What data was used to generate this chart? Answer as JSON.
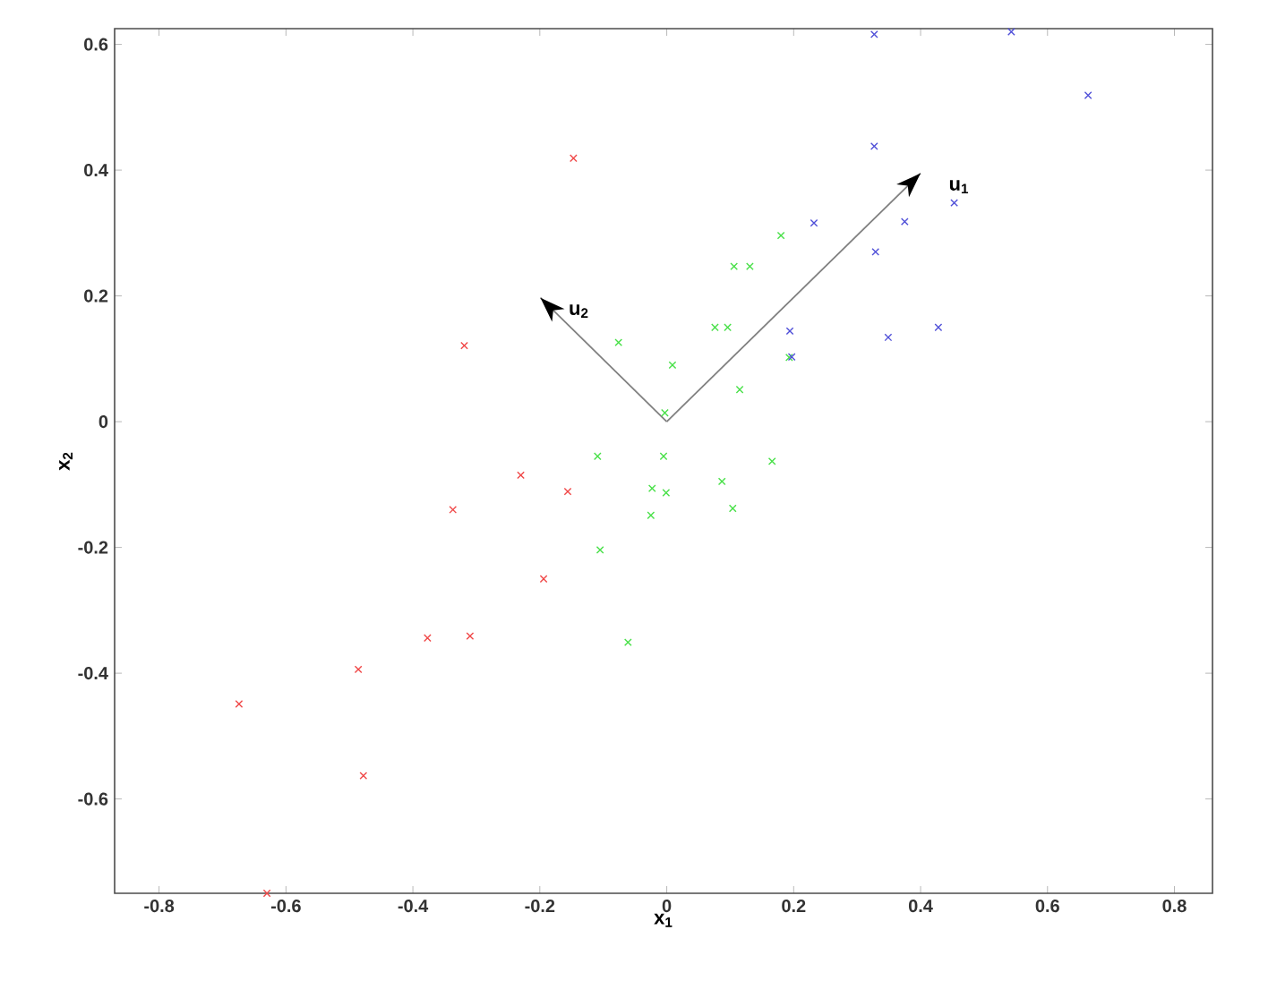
{
  "chart_data": {
    "type": "scatter",
    "xlabel": "x$_{1}$",
    "ylabel": "x$_{2}$",
    "xlim": [
      -0.87,
      0.86
    ],
    "ylim": [
      -0.75,
      0.625
    ],
    "xticks": [
      -0.8,
      -0.6,
      -0.4,
      -0.2,
      0,
      0.2,
      0.4,
      0.6,
      0.8
    ],
    "yticks": [
      -0.6,
      -0.4,
      -0.2,
      0,
      0.2,
      0.4,
      0.6
    ],
    "marker": "cross",
    "series": [
      {
        "color": "#f04848",
        "x": [
          -0.147,
          -0.319,
          -0.23,
          -0.156,
          -0.337,
          -0.194,
          -0.377,
          -0.31,
          -0.486,
          -0.674,
          -0.478,
          -0.63
        ],
        "values": [
          0.419,
          0.121,
          -0.085,
          -0.111,
          -0.14,
          -0.25,
          -0.344,
          -0.341,
          -0.394,
          -0.449,
          -0.563,
          -0.75
        ]
      },
      {
        "color": "#48e048",
        "x": [
          -0.076,
          0.009,
          -0.003,
          -0.109,
          -0.005,
          -0.023,
          -0.001,
          -0.025,
          -0.105,
          -0.061,
          0.18,
          0.106,
          0.131,
          0.076,
          0.096,
          0.115,
          0.193,
          0.087,
          0.104,
          0.166
        ],
        "values": [
          0.126,
          0.09,
          0.014,
          -0.055,
          -0.055,
          -0.106,
          -0.113,
          -0.149,
          -0.204,
          -0.351,
          0.296,
          0.247,
          0.247,
          0.15,
          0.15,
          0.051,
          0.102,
          -0.095,
          -0.138,
          -0.063
        ]
      },
      {
        "color": "#5050d8",
        "x": [
          0.327,
          0.543,
          0.664,
          0.327,
          0.453,
          0.375,
          0.232,
          0.329,
          0.194,
          0.197,
          0.349,
          0.428
        ],
        "values": [
          0.616,
          0.62,
          0.519,
          0.438,
          0.348,
          0.318,
          0.316,
          0.27,
          0.144,
          0.103,
          0.134,
          0.15
        ]
      },
      {
        "type": "line",
        "marker": "none",
        "name": "u$_{1}$",
        "color": "#808080",
        "x": [
          0,
          0.4
        ],
        "values": [
          0,
          0.395
        ]
      },
      {
        "type": "line",
        "marker": "none",
        "name": "u$_{2}$",
        "color": "#808080",
        "x": [
          0,
          -0.199
        ],
        "values": [
          0,
          0.197
        ]
      }
    ]
  }
}
